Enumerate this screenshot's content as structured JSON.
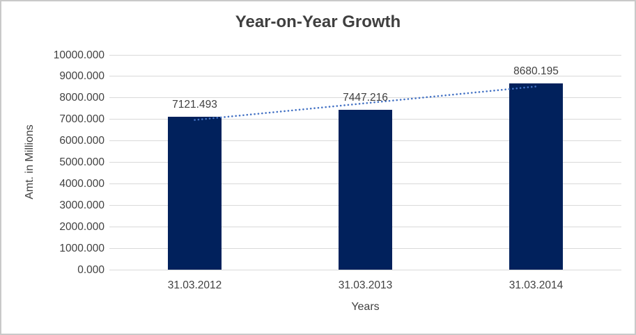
{
  "chart_data": {
    "type": "bar",
    "title": "Year-on-Year Growth",
    "xlabel": "Years",
    "ylabel": "Amt. in Millions",
    "categories": [
      "31.03.2012",
      "31.03.2013",
      "31.03.2014"
    ],
    "values": [
      7121.493,
      7447.216,
      8680.195
    ],
    "data_labels": [
      "7121.493",
      "7447.216",
      "8680.195"
    ],
    "y_ticks": [
      "0.000",
      "1000.000",
      "2000.000",
      "3000.000",
      "4000.000",
      "5000.000",
      "6000.000",
      "7000.000",
      "8000.000",
      "9000.000",
      "10000.000"
    ],
    "ylim": [
      0,
      10000
    ],
    "grid": "horizontal",
    "legend": "none",
    "bar_color": "#01215c",
    "gridline_color": "#d9d9d9",
    "text_color": "#404040",
    "trendline": {
      "type": "linear",
      "style": "dotted",
      "color": "#4472c4",
      "start_value": 6970,
      "end_value": 8530
    }
  }
}
